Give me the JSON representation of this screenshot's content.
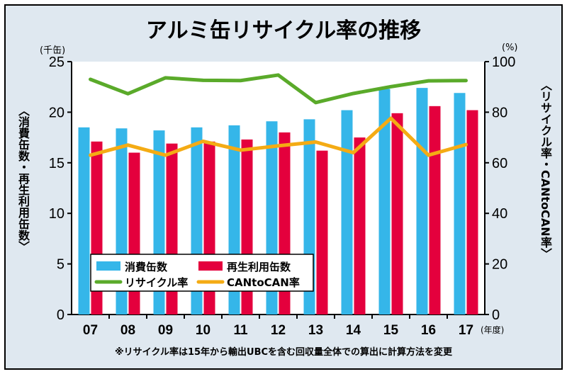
{
  "title": "アルミ缶リサイクル率の推移",
  "footnote": "※リサイクル率は15年から輸出UBCを含む回収量全体での算出に計算方法を変更",
  "chart_data": {
    "type": "bar",
    "categories": [
      "07",
      "08",
      "09",
      "10",
      "11",
      "12",
      "13",
      "14",
      "15",
      "16",
      "17"
    ],
    "xunit": "(年度)",
    "left_axis": {
      "unit": "(千缶)",
      "label": "〈消費缶数・再生利用缶数〉",
      "ylim": [
        0,
        25
      ],
      "ticks": [
        "0",
        "5",
        "10",
        "15",
        "20",
        "25"
      ]
    },
    "right_axis": {
      "unit": "(%)",
      "label": "〈リサイクル率・CANtoCAN率〉",
      "ylim": [
        0,
        100
      ],
      "ticks": [
        "0",
        "20",
        "40",
        "60",
        "80",
        "100"
      ]
    },
    "series": [
      {
        "name": "消費缶数",
        "type": "bar",
        "axis": "left",
        "color": "#35b6e9",
        "values": [
          18.5,
          18.4,
          18.2,
          18.5,
          18.7,
          19.1,
          19.3,
          20.2,
          22.3,
          22.4,
          21.9
        ]
      },
      {
        "name": "再生利用缶数",
        "type": "bar",
        "axis": "left",
        "color": "#e4003d",
        "values": [
          17.1,
          16.0,
          16.9,
          17.1,
          17.3,
          18.0,
          16.2,
          17.5,
          19.9,
          20.6,
          20.2
        ]
      },
      {
        "name": "リサイクル率",
        "type": "line",
        "axis": "right",
        "color": "#5aaa2a",
        "values": [
          93.0,
          87.3,
          93.6,
          92.6,
          92.5,
          94.7,
          83.8,
          87.4,
          90.1,
          92.4,
          92.5
        ]
      },
      {
        "name": "CANtoCAN率",
        "type": "line",
        "axis": "right",
        "color": "#f4ab14",
        "values": [
          63.0,
          67.0,
          63.0,
          68.5,
          65.0,
          66.7,
          68.2,
          64.0,
          77.6,
          63.0,
          67.2
        ]
      }
    ],
    "legend": {
      "placement": "lower-left"
    },
    "grid": false
  }
}
